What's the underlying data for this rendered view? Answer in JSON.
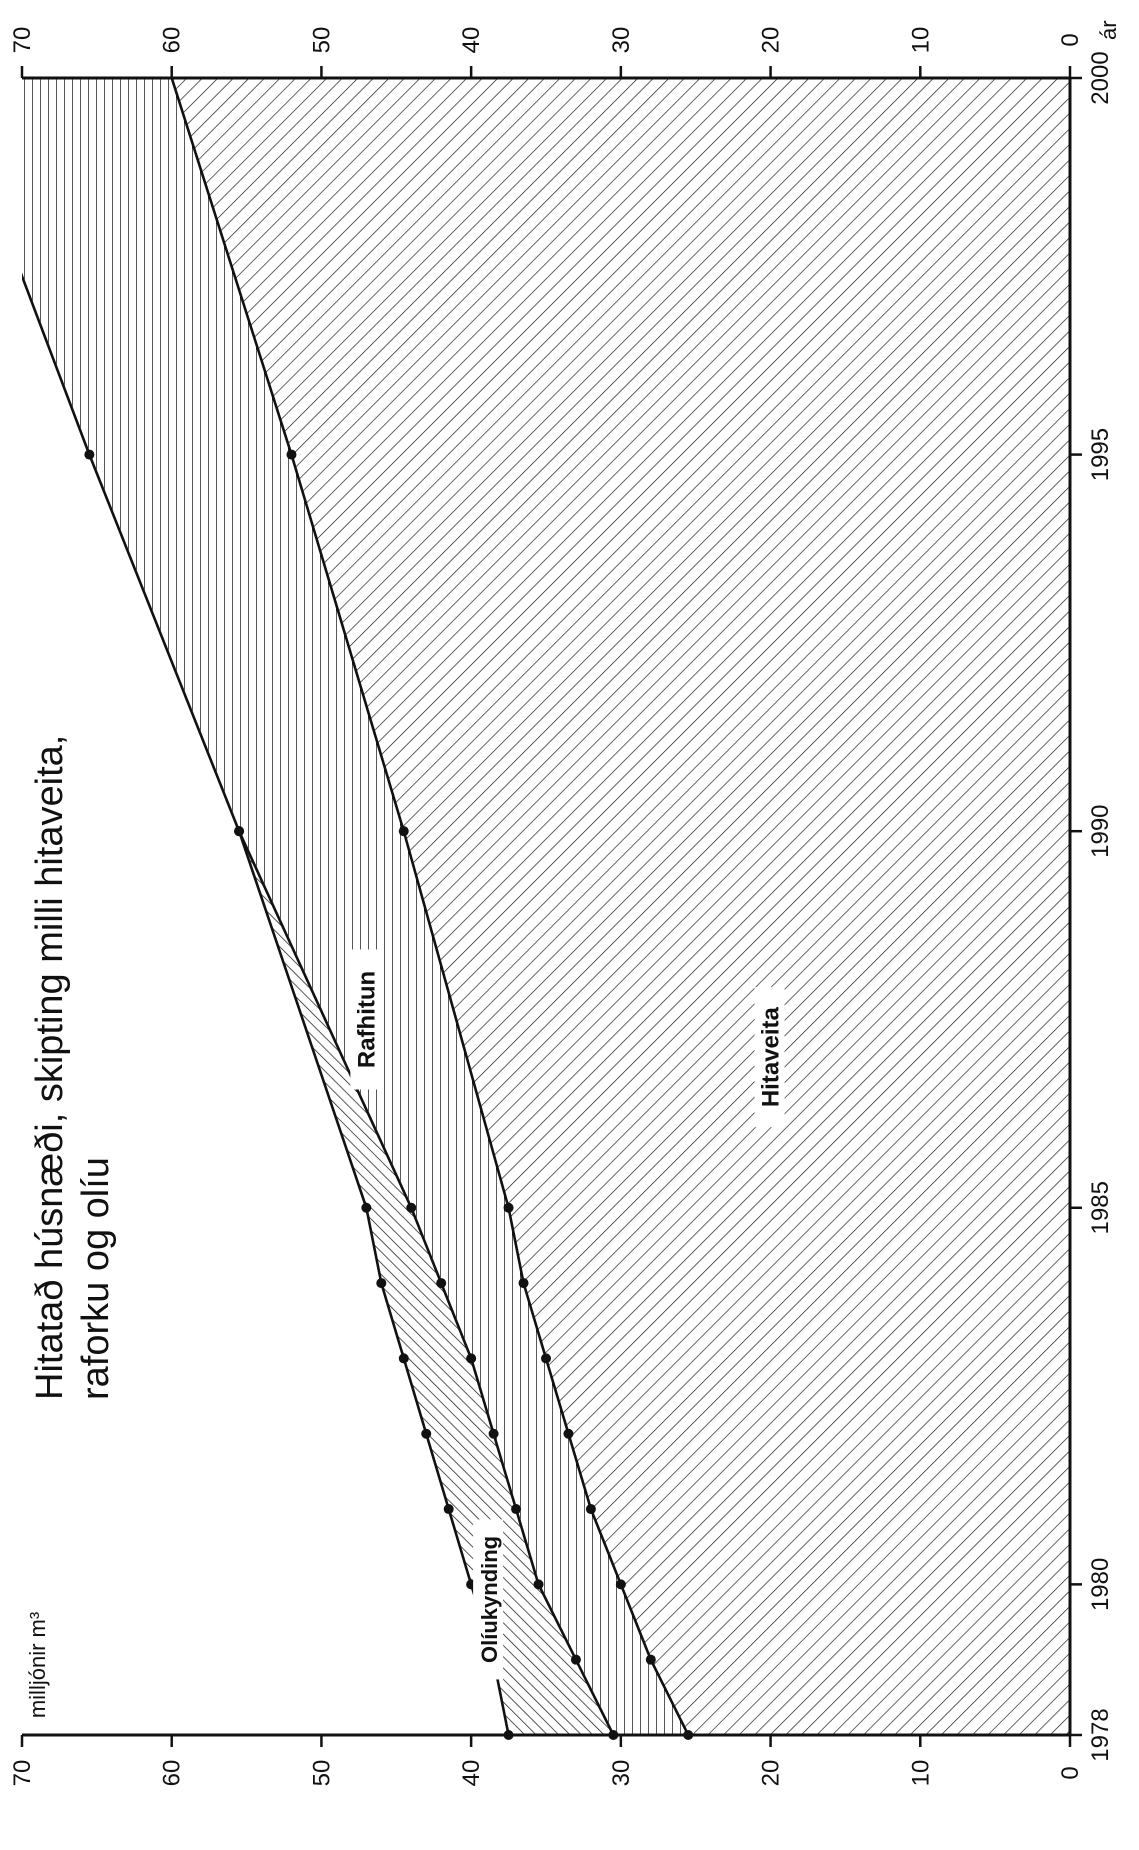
{
  "chart_data": {
    "type": "area",
    "stacked": true,
    "orientation": "rotated-90-clockwise",
    "title_line1": "Hitatað húsnæði, skipting milli hitaveita,",
    "title_line2": "raforku og olíu",
    "ylabel": "milljónir m³",
    "xlabel_unit": "ár",
    "x_ticks": [
      "1978",
      "1980",
      "1985",
      "1990",
      "1995",
      "2000"
    ],
    "y_ticks": [
      "0",
      "10",
      "20",
      "30",
      "40",
      "50",
      "60",
      "70"
    ],
    "xlim": [
      1978,
      2000
    ],
    "ylim": [
      0,
      70
    ],
    "grid": false,
    "series": [
      {
        "name": "Hitaveita",
        "pattern": "diagonal-hatch",
        "x": [
          1978,
          1979,
          1980,
          1981,
          1982,
          1983,
          1984,
          1985,
          1990,
          1995,
          2000
        ],
        "y": [
          25.5,
          28.0,
          30.0,
          32.0,
          33.5,
          35.0,
          36.5,
          37.5,
          44.5,
          52.0,
          60.0
        ]
      },
      {
        "name": "Rafhitun",
        "pattern": "horizontal-lines",
        "x": [
          1978,
          1979,
          1980,
          1981,
          1982,
          1983,
          1984,
          1985,
          1990,
          1995,
          2000
        ],
        "y": [
          30.5,
          33.0,
          35.5,
          37.0,
          38.5,
          40.0,
          42.0,
          44.0,
          55.5,
          65.5,
          75.0
        ]
      },
      {
        "name": "Olíukynding",
        "pattern": "diagonal-hatch-reverse",
        "x": [
          1978,
          1979,
          1980,
          1981,
          1982,
          1983,
          1984,
          1985,
          1990
        ],
        "y": [
          37.5,
          38.5,
          40.0,
          41.5,
          43.0,
          44.5,
          46.0,
          47.0,
          55.5
        ]
      }
    ]
  }
}
